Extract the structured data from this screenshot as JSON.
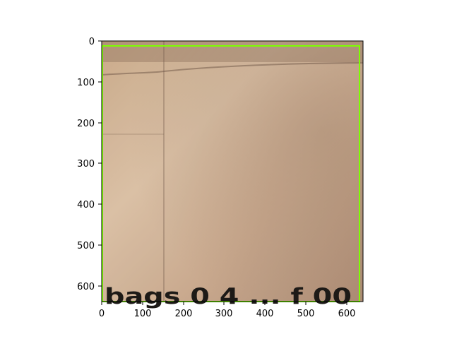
{
  "figure": {
    "x_ticks": [
      "0",
      "100",
      "200",
      "300",
      "400",
      "500",
      "600"
    ],
    "y_ticks": [
      "0",
      "100",
      "200",
      "300",
      "400",
      "500",
      "600"
    ]
  },
  "image": {
    "description_colors": {
      "cardboard_light": "#d7b99b",
      "cardboard_dark": "#9b7a62",
      "box_outline": "#7cff00"
    },
    "visible_printed_text": "bags 0 4 ... f 00"
  }
}
